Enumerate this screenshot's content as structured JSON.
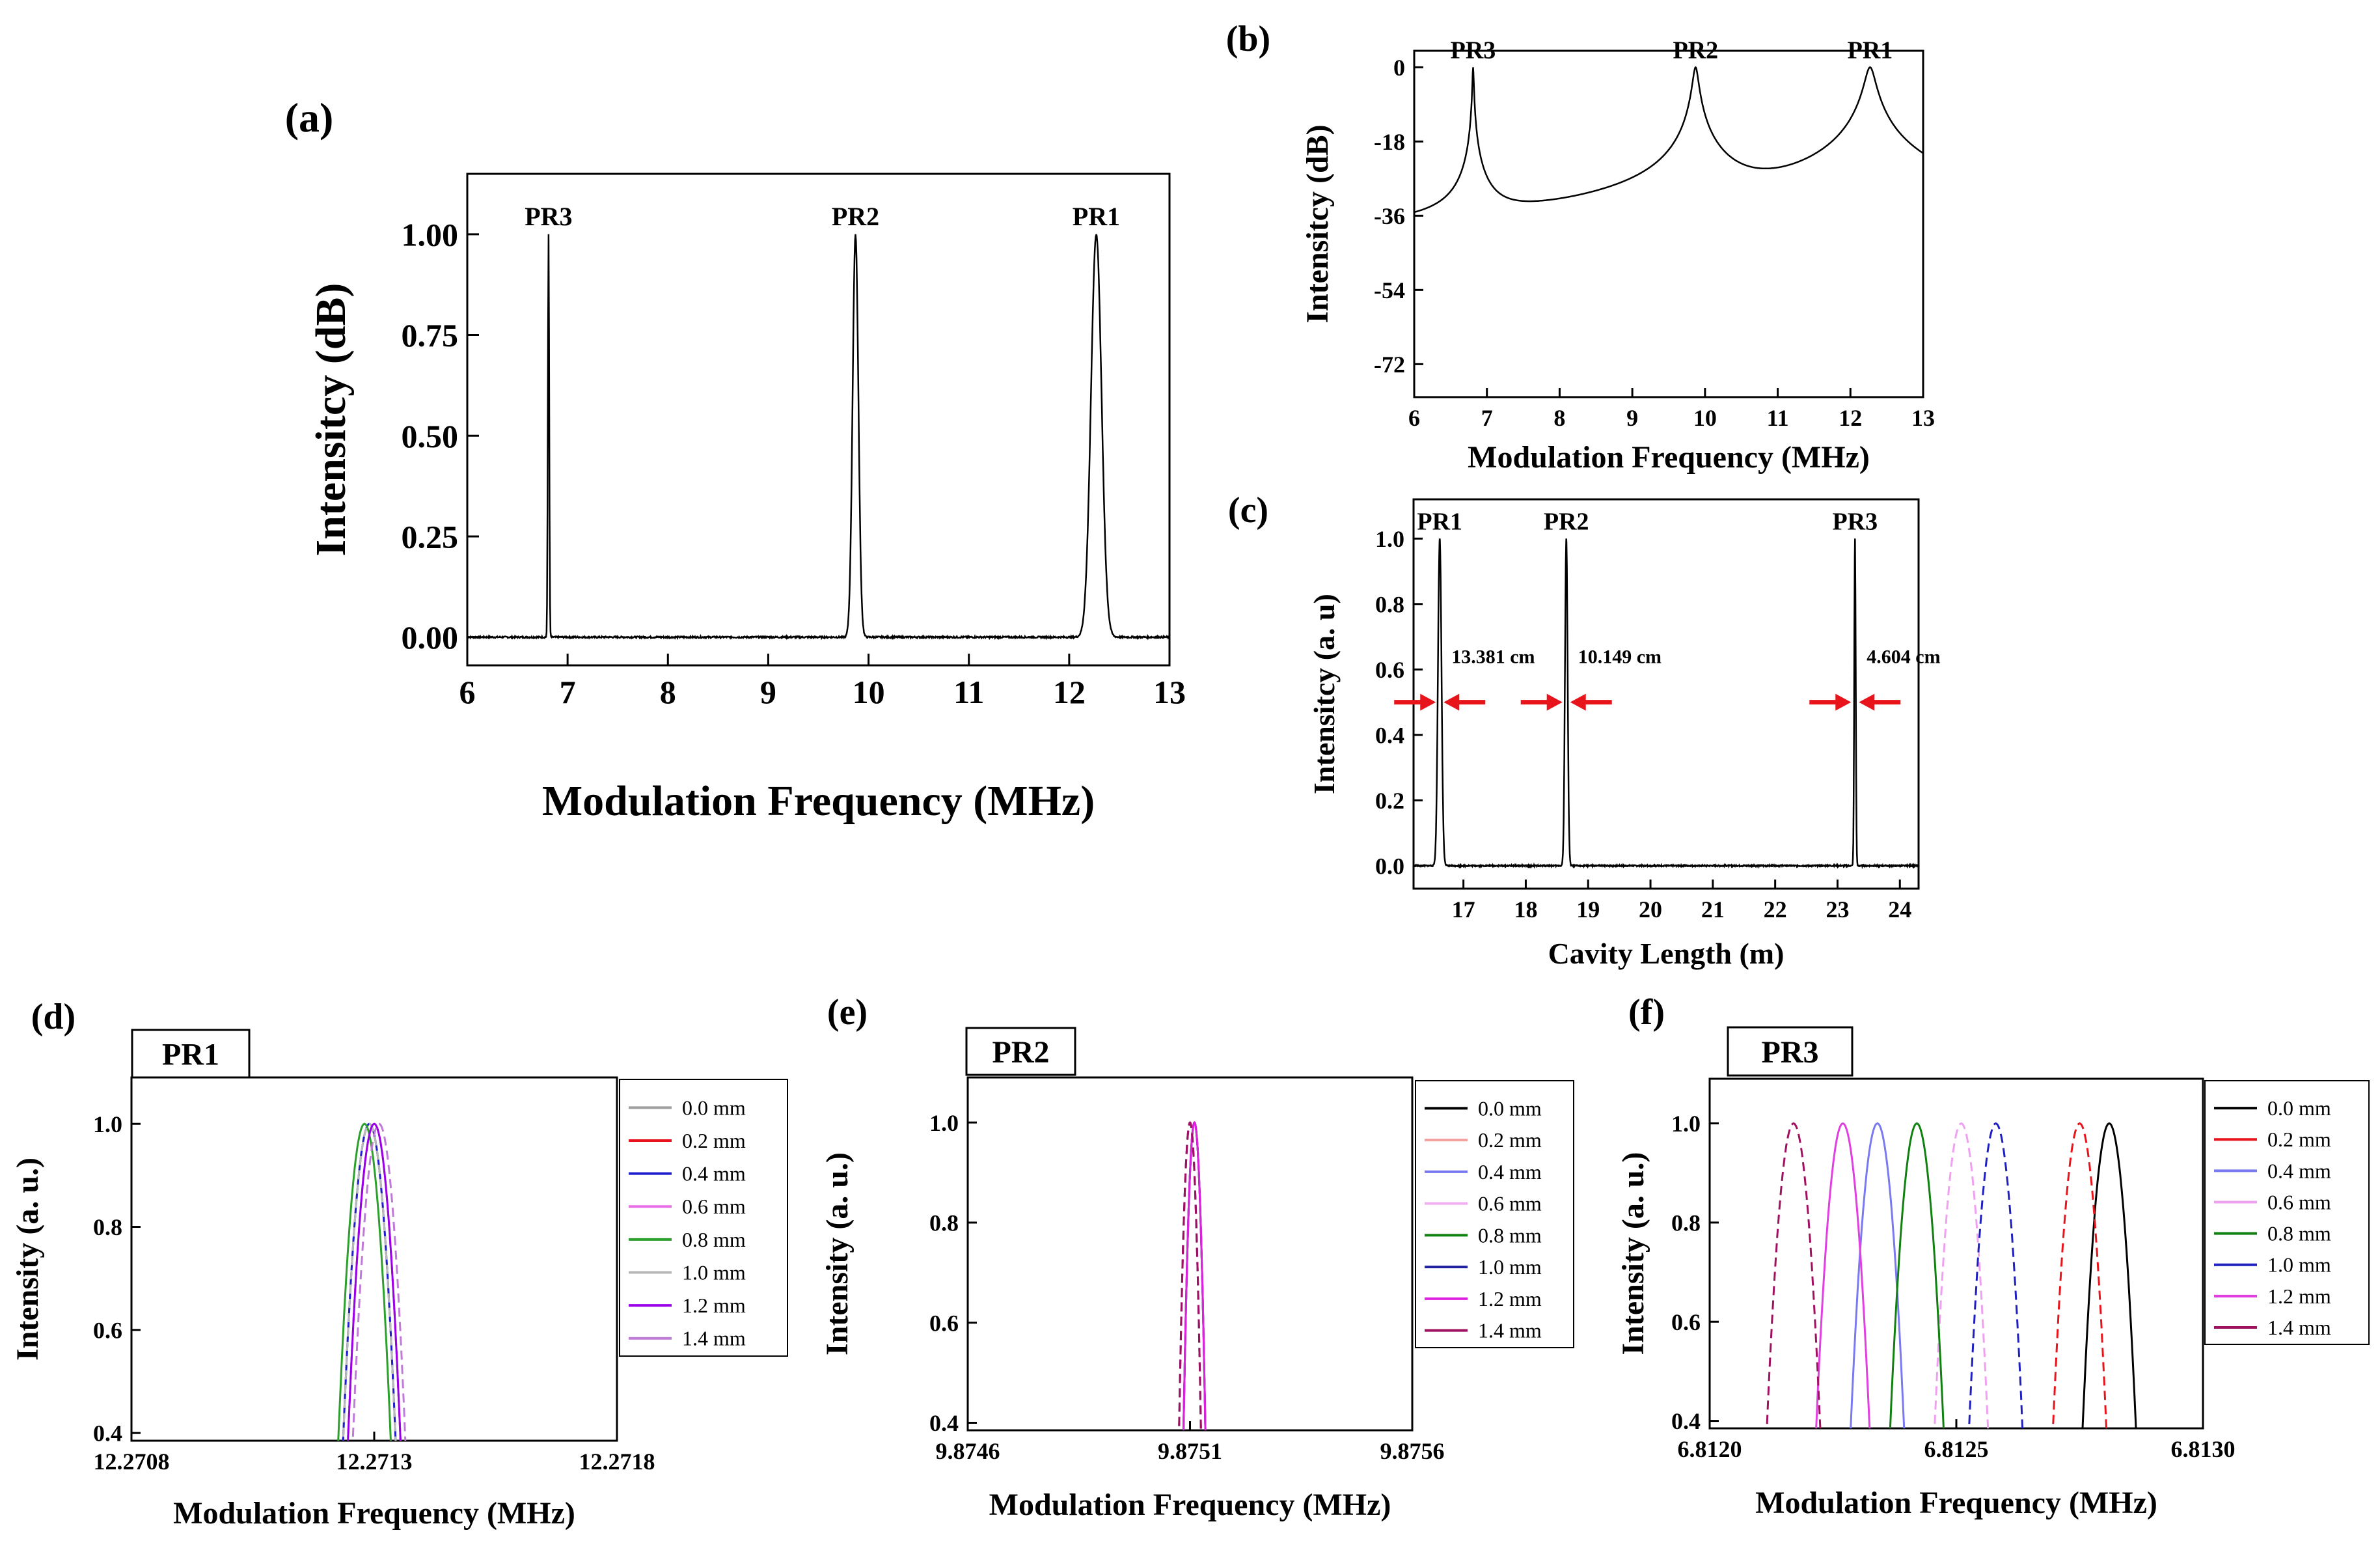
{
  "chart_data": [
    {
      "panel": "(a)",
      "type": "line",
      "xlabel": "Modulation Frequency (MHz)",
      "ylabel": "Intensitcy (dB)",
      "xlim": [
        6,
        13
      ],
      "ylim": [
        -0.07,
        1.15
      ],
      "xticks": [
        6,
        7,
        8,
        9,
        10,
        11,
        12,
        13
      ],
      "yticks": [
        "0.00",
        "0.25",
        "0.50",
        "0.75",
        "1.00"
      ],
      "peaks": [
        {
          "label": "PR3",
          "x": 6.81,
          "height": 1.0,
          "width": 0.014
        },
        {
          "label": "PR2",
          "x": 9.87,
          "height": 1.0,
          "width": 0.06
        },
        {
          "label": "PR1",
          "x": 12.27,
          "height": 1.0,
          "width": 0.11
        }
      ],
      "series": [
        {
          "color": "#000000"
        }
      ]
    },
    {
      "panel": "(b)",
      "type": "line",
      "xlabel": "Modulation Frequency (MHz)",
      "ylabel": "Intensitcy (dB)",
      "xlim": [
        6,
        13
      ],
      "ylim": [
        -80,
        4
      ],
      "xticks": [
        6,
        7,
        8,
        9,
        10,
        11,
        12,
        13
      ],
      "yticks": [
        0,
        -18,
        -36,
        -54,
        -72
      ],
      "noise_floor": -70,
      "peaks": [
        {
          "label": "PR3",
          "x": 6.81,
          "height": 0,
          "width": 0.014
        },
        {
          "label": "PR2",
          "x": 9.87,
          "height": 0,
          "width": 0.06
        },
        {
          "label": "PR1",
          "x": 12.27,
          "height": 0,
          "width": 0.11
        }
      ],
      "series": [
        {
          "color": "#000000"
        }
      ]
    },
    {
      "panel": "(c)",
      "type": "line",
      "xlabel": "Cavity Length (m)",
      "ylabel": "Intensitcy (a. u)",
      "xlim": [
        16.2,
        24.3
      ],
      "ylim": [
        -0.07,
        1.12
      ],
      "xticks": [
        17,
        18,
        19,
        20,
        21,
        22,
        23,
        24
      ],
      "yticks": [
        "0.0",
        "0.2",
        "0.4",
        "0.6",
        "0.8",
        "1.0"
      ],
      "peaks": [
        {
          "label": "PR1",
          "x": 16.62,
          "height": 1.0,
          "width": 0.06
        },
        {
          "label": "PR2",
          "x": 18.65,
          "height": 1.0,
          "width": 0.045
        },
        {
          "label": "PR3",
          "x": 23.28,
          "height": 1.0,
          "width": 0.025
        }
      ],
      "annotations": [
        {
          "text": "13.381 cm",
          "x": 16.62
        },
        {
          "text": "10.149 cm",
          "x": 18.65
        },
        {
          "text": "4.604 cm",
          "x": 23.28
        }
      ],
      "arrow_color": "#e8141c",
      "series": [
        {
          "color": "#000000"
        }
      ]
    },
    {
      "panel": "(d)",
      "box_title": "PR1",
      "type": "line",
      "xlabel": "Modulation Frequency (MHz)",
      "ylabel": "Intensity (a. u.)",
      "xlim": [
        12.2708,
        12.2718
      ],
      "ylim": [
        0.385,
        1.09
      ],
      "xticks": [
        "12.2708",
        "12.2713",
        "12.2718"
      ],
      "yticks": [
        "0.4",
        "0.6",
        "0.8",
        "1.0"
      ],
      "series": [
        {
          "name": "0.0 mm",
          "color": "#9e9e9e",
          "center": 12.27129
        },
        {
          "name": "0.2 mm",
          "color": "#e8141c",
          "center": 12.2713
        },
        {
          "name": "0.4 mm",
          "color": "#1f1fd0",
          "center": 12.27129
        },
        {
          "name": "0.6 mm",
          "color": "#e86ee8",
          "center": 12.2713
        },
        {
          "name": "0.8 mm",
          "color": "#2ca02c",
          "center": 12.27128
        },
        {
          "name": "1.0 mm",
          "color": "#b8b8b8",
          "center": 12.27129
        },
        {
          "name": "1.2 mm",
          "color": "#9a00e8",
          "center": 12.2713
        },
        {
          "name": "1.4 mm",
          "color": "#c07ad8",
          "center": 12.27131
        }
      ]
    },
    {
      "panel": "(e)",
      "box_title": "PR2",
      "type": "line",
      "xlabel": "Modulation Frequency (MHz)",
      "ylabel": "Intensity (a. u.)",
      "xlim": [
        9.8746,
        9.8756
      ],
      "ylim": [
        0.385,
        1.09
      ],
      "xticks": [
        "9.8746",
        "9.8751",
        "9.8756"
      ],
      "yticks": [
        "0.4",
        "0.6",
        "0.8",
        "1.0"
      ],
      "series": [
        {
          "name": "0.0 mm",
          "color": "#000000",
          "center": 9.87511
        },
        {
          "name": "0.2 mm",
          "color": "#f4a0a0",
          "center": 9.8751
        },
        {
          "name": "0.4 mm",
          "color": "#7a7af0",
          "center": 9.87511
        },
        {
          "name": "0.6 mm",
          "color": "#f0b0f0",
          "center": 9.8751
        },
        {
          "name": "0.8 mm",
          "color": "#108010",
          "center": 9.87511
        },
        {
          "name": "1.0 mm",
          "color": "#2020a0",
          "center": 9.8751
        },
        {
          "name": "1.2 mm",
          "color": "#e020e0",
          "center": 9.87511
        },
        {
          "name": "1.4 mm",
          "color": "#a01060",
          "center": 9.8751
        }
      ]
    },
    {
      "panel": "(f)",
      "box_title": "PR3",
      "type": "line",
      "xlabel": "Modulation Frequency (MHz)",
      "ylabel": "Intensity (a. u.)",
      "xlim": [
        6.812,
        6.813
      ],
      "ylim": [
        0.385,
        1.09
      ],
      "xticks": [
        "6.8120",
        "6.8125",
        "6.8130"
      ],
      "yticks": [
        "0.4",
        "0.6",
        "0.8",
        "1.0"
      ],
      "series": [
        {
          "name": "0.0 mm",
          "color": "#000000",
          "center": 6.81281
        },
        {
          "name": "0.2 mm",
          "color": "#e8141c",
          "center": 6.81275
        },
        {
          "name": "0.4 mm",
          "color": "#7a7af0",
          "center": 6.81234
        },
        {
          "name": "0.6 mm",
          "color": "#f0a0f0",
          "center": 6.81251
        },
        {
          "name": "0.8 mm",
          "color": "#108010",
          "center": 6.81242
        },
        {
          "name": "1.0 mm",
          "color": "#2020c0",
          "center": 6.81258
        },
        {
          "name": "1.2 mm",
          "color": "#e040e0",
          "center": 6.81227
        },
        {
          "name": "1.4 mm",
          "color": "#a01060",
          "center": 6.81217
        }
      ]
    }
  ]
}
